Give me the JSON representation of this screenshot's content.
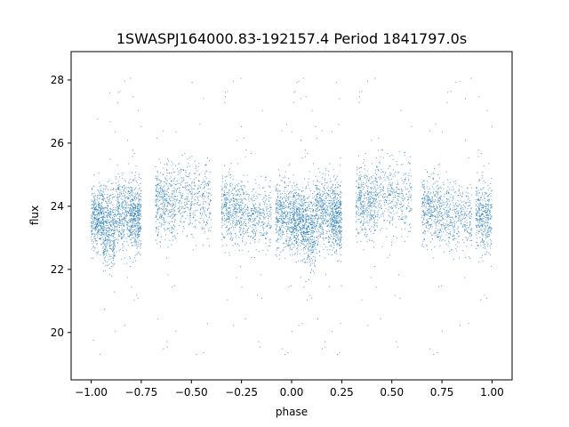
{
  "chart_data": {
    "type": "scatter",
    "title": "1SWASPJ164000.83-192157.4 Period 1841797.0s",
    "xlabel": "phase",
    "ylabel": "flux",
    "xlim": [
      -1.1,
      1.1
    ],
    "ylim": [
      18.5,
      28.9
    ],
    "x_ticks": [
      -1.0,
      -0.75,
      -0.5,
      -0.25,
      0.0,
      0.25,
      0.5,
      0.75,
      1.0
    ],
    "x_tick_labels": [
      "−1.00",
      "−0.75",
      "−0.50",
      "−0.25",
      "0.00",
      "0.25",
      "0.50",
      "0.75",
      "1.00"
    ],
    "y_ticks": [
      20,
      22,
      24,
      26,
      28
    ],
    "y_tick_labels": [
      "20",
      "22",
      "24",
      "26",
      "28"
    ],
    "marker_color": "#1f77b4",
    "grid": false,
    "series": [
      {
        "phase_range": [
          -1.0,
          1.0
        ],
        "folded_period_in_phase": 1.0,
        "clusters": [
          {
            "x": [
              -1.0,
              -0.94
            ],
            "center": 23.6,
            "half_spread": 1.3
          },
          {
            "x": [
              -0.94,
              -0.88
            ],
            "center": 23.3,
            "half_spread": 1.6
          },
          {
            "x": [
              -0.88,
              -0.8
            ],
            "center": 23.8,
            "half_spread": 1.4
          },
          {
            "x": [
              -0.8,
              -0.75
            ],
            "center": 23.7,
            "half_spread": 1.4
          },
          {
            "x": [
              -0.68,
              -0.58
            ],
            "center": 24.1,
            "half_spread": 1.4
          },
          {
            "x": [
              -0.58,
              -0.4
            ],
            "center": 24.3,
            "half_spread": 1.5
          },
          {
            "x": [
              -0.35,
              -0.25
            ],
            "center": 23.9,
            "half_spread": 1.3
          },
          {
            "x": [
              -0.25,
              -0.1
            ],
            "center": 23.7,
            "half_spread": 1.3
          },
          {
            "x": [
              -0.08,
              0.0
            ],
            "center": 23.7,
            "half_spread": 1.4
          },
          {
            "x": [
              0.0,
              0.06
            ],
            "center": 23.6,
            "half_spread": 1.3
          },
          {
            "x": [
              0.06,
              0.12
            ],
            "center": 23.3,
            "half_spread": 1.6
          },
          {
            "x": [
              0.12,
              0.2
            ],
            "center": 23.8,
            "half_spread": 1.4
          },
          {
            "x": [
              0.2,
              0.25
            ],
            "center": 23.7,
            "half_spread": 1.4
          },
          {
            "x": [
              0.32,
              0.42
            ],
            "center": 24.1,
            "half_spread": 1.4
          },
          {
            "x": [
              0.42,
              0.6
            ],
            "center": 24.3,
            "half_spread": 1.5
          },
          {
            "x": [
              0.65,
              0.75
            ],
            "center": 23.9,
            "half_spread": 1.3
          },
          {
            "x": [
              0.75,
              0.9
            ],
            "center": 23.7,
            "half_spread": 1.3
          },
          {
            "x": [
              0.92,
              1.0
            ],
            "center": 23.7,
            "half_spread": 1.4
          }
        ]
      }
    ]
  }
}
